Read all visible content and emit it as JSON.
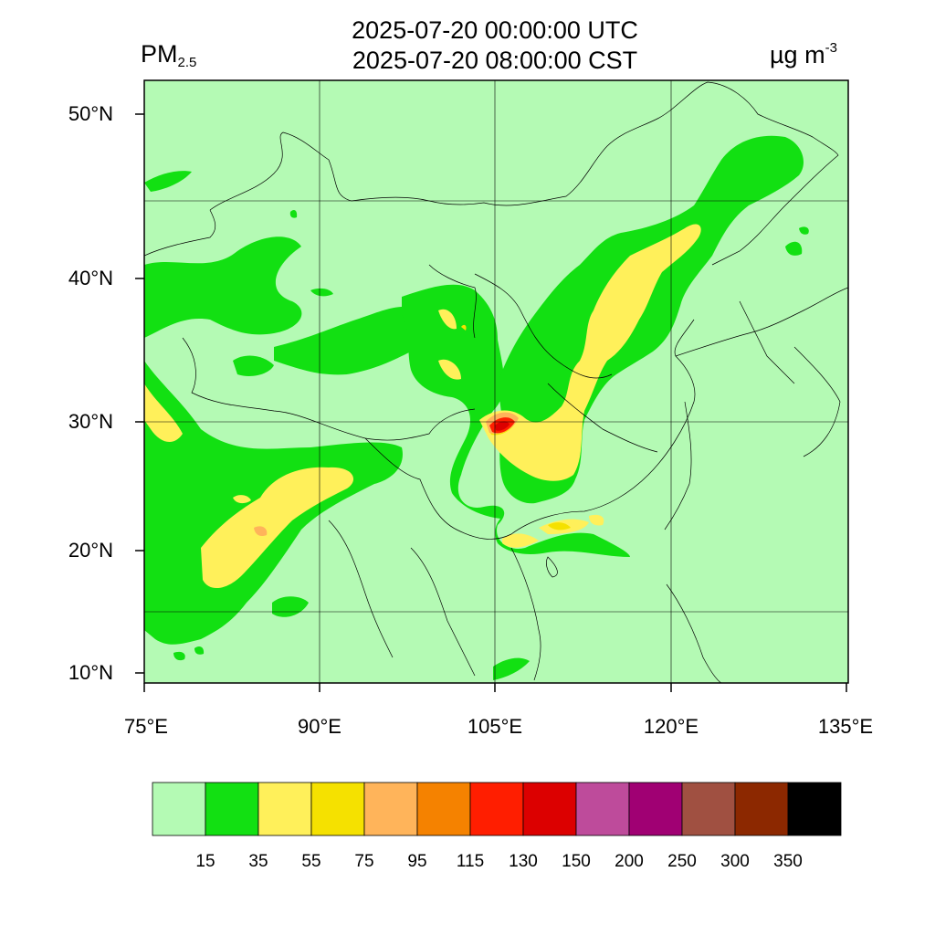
{
  "header": {
    "title_utc": "2025-07-20 00:00:00 UTC",
    "title_cst": "2025-07-20 08:00:00 CST",
    "variable_main": "PM",
    "variable_sub": "2.5",
    "unit_main": "µg m",
    "unit_sup": "-3"
  },
  "axes": {
    "lat_labels": [
      "50°N",
      "40°N",
      "30°N",
      "20°N",
      "10°N"
    ],
    "lon_labels": [
      "75°E",
      "90°E",
      "105°E",
      "120°E",
      "135°E"
    ]
  },
  "colorbar": {
    "colors": [
      "#b4fab4",
      "#12e012",
      "#fff05a",
      "#f5e100",
      "#ffb45a",
      "#f58200",
      "#ff1e00",
      "#dc0000",
      "#be4b9b",
      "#a00073",
      "#a05041",
      "#8c2800",
      "#000000"
    ],
    "labels": [
      "15",
      "35",
      "55",
      "75",
      "95",
      "115",
      "130",
      "150",
      "200",
      "250",
      "300",
      "350"
    ]
  },
  "map": {
    "background_color": "#b4fab4"
  }
}
